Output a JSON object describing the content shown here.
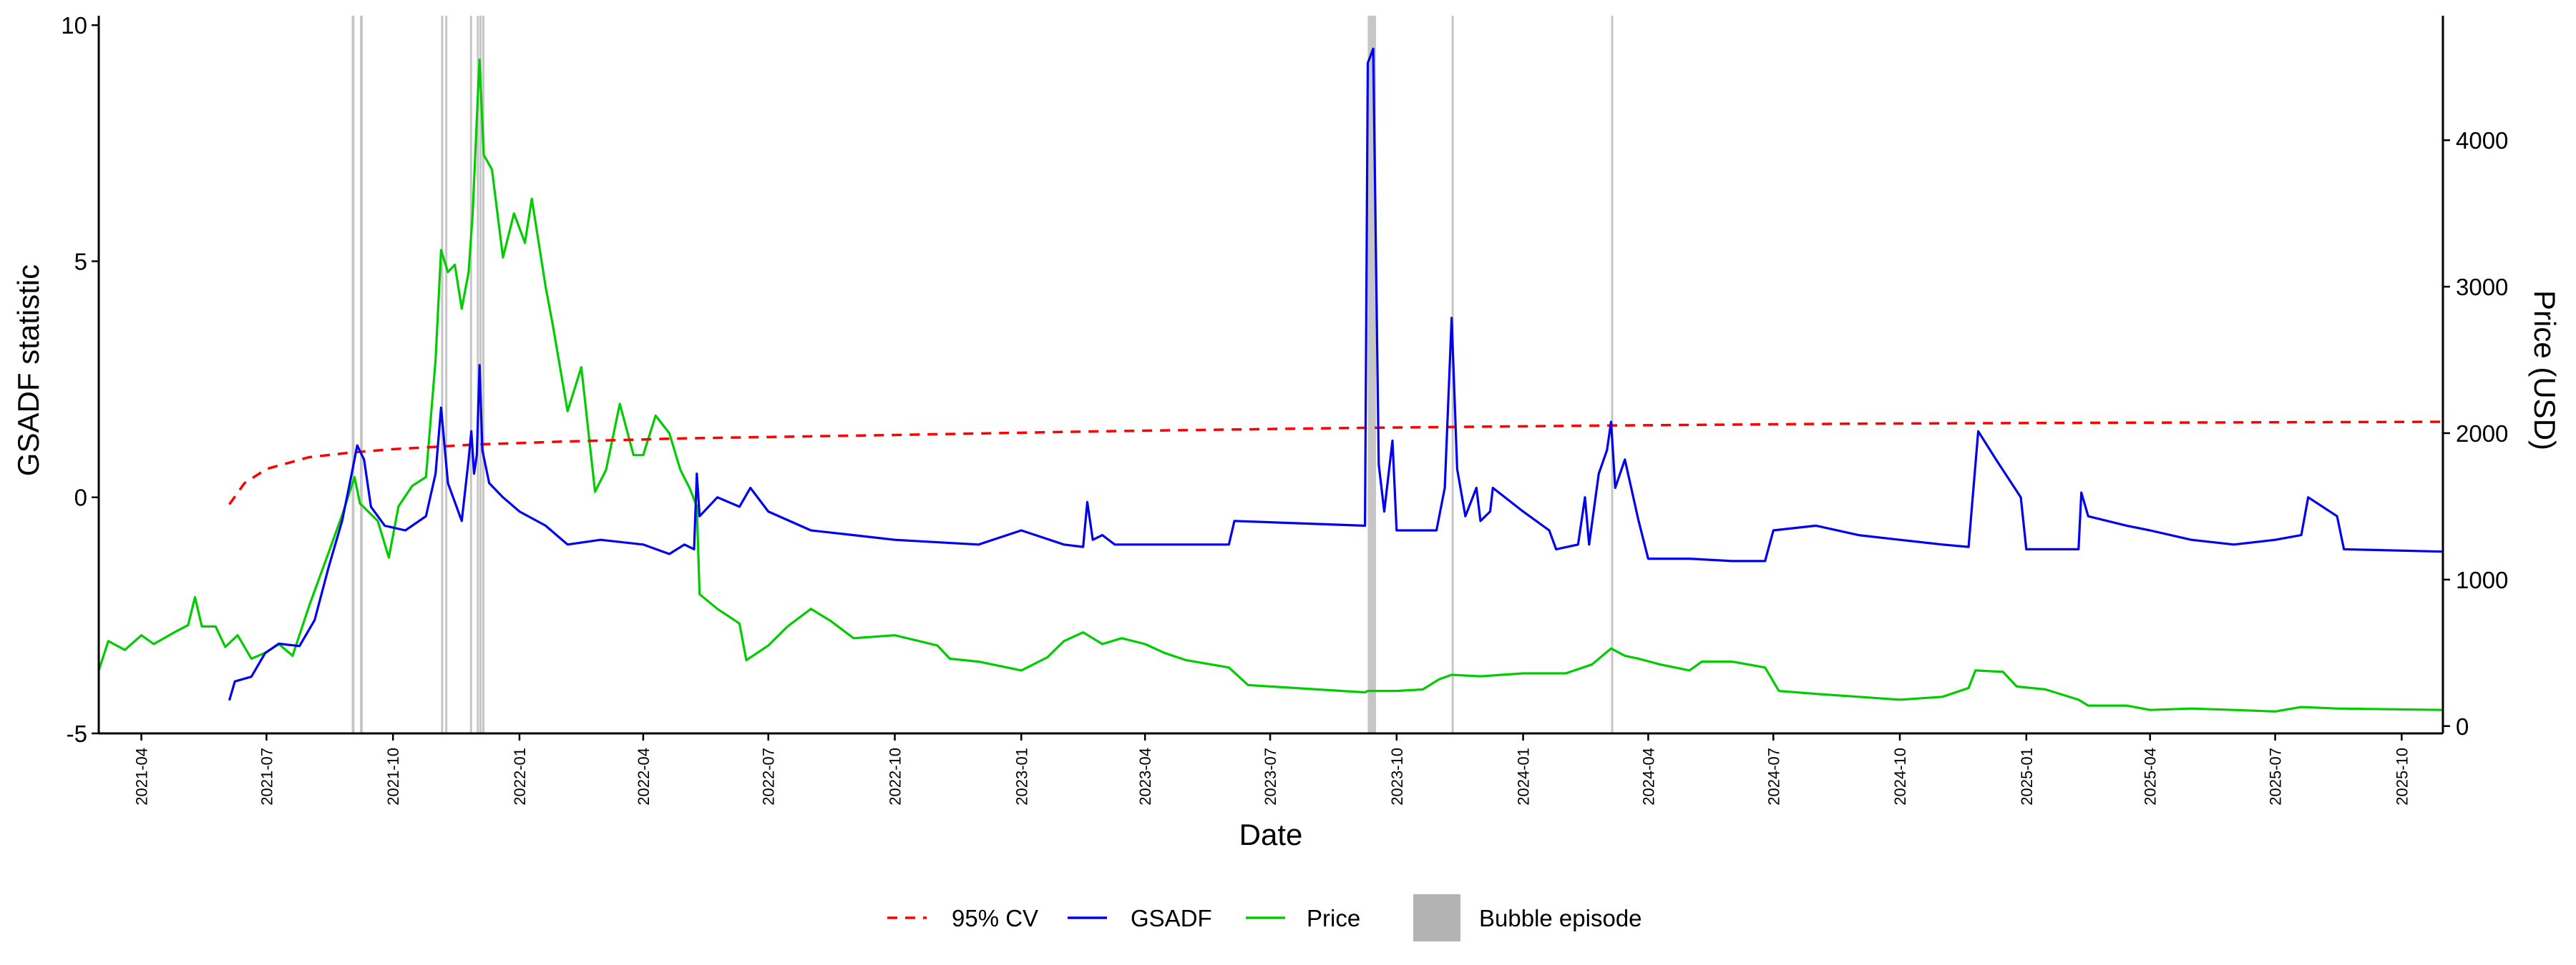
{
  "chart_data": {
    "type": "line",
    "xlabel": "Date",
    "ylabel_left": "GSADF statistic",
    "ylabel_right": "Price (USD)",
    "xlim": [
      "2021-03-01",
      "2025-10-31"
    ],
    "ylim_left": [
      -5,
      10.2
    ],
    "ylim_right": [
      -50,
      4850
    ],
    "left_ticks": [
      -5,
      0,
      5,
      10
    ],
    "left_tick_labels": [
      "-5",
      "0",
      "5",
      "10"
    ],
    "right_ticks": [
      0,
      1000,
      2000,
      3000,
      4000
    ],
    "right_tick_labels": [
      "0",
      "1000",
      "2000",
      "3000",
      "4000"
    ],
    "x_ticks": [
      "2021-04-01",
      "2021-07-01",
      "2021-10-01",
      "2022-01-01",
      "2022-04-01",
      "2022-07-01",
      "2022-10-01",
      "2023-01-01",
      "2023-04-01",
      "2023-07-01",
      "2023-10-01",
      "2024-01-01",
      "2024-04-01",
      "2024-07-01",
      "2024-10-01",
      "2025-01-01",
      "2025-04-01",
      "2025-07-01",
      "2025-10-01"
    ],
    "x_tick_labels": [
      "2021-04",
      "2021-07",
      "2021-10",
      "2022-01",
      "2022-04",
      "2022-07",
      "2022-10",
      "2023-01",
      "2023-04",
      "2023-07",
      "2023-10",
      "2024-01",
      "2024-04",
      "2024-07",
      "2024-10",
      "2025-01",
      "2025-04",
      "2025-07",
      "2025-10"
    ],
    "grid": false,
    "legend_position": "bottom",
    "series": [
      {
        "name": "95% CV",
        "axis": "left",
        "color": "#ff0000",
        "style": "dashed",
        "points": [
          [
            "2021-06-04",
            -0.15
          ],
          [
            "2021-06-15",
            0.3
          ],
          [
            "2021-07-01",
            0.6
          ],
          [
            "2021-08-01",
            0.85
          ],
          [
            "2021-09-01",
            0.95
          ],
          [
            "2021-10-01",
            1.02
          ],
          [
            "2021-12-01",
            1.12
          ],
          [
            "2022-02-01",
            1.18
          ],
          [
            "2022-05-01",
            1.25
          ],
          [
            "2022-10-01",
            1.32
          ],
          [
            "2023-03-01",
            1.4
          ],
          [
            "2023-09-01",
            1.47
          ],
          [
            "2024-03-01",
            1.52
          ],
          [
            "2024-09-01",
            1.56
          ],
          [
            "2025-03-01",
            1.58
          ],
          [
            "2025-10-31",
            1.6
          ]
        ]
      },
      {
        "name": "GSADF",
        "axis": "left",
        "color": "#0000ee",
        "style": "solid",
        "points": [
          [
            "2021-06-04",
            -4.3
          ],
          [
            "2021-06-08",
            -3.9
          ],
          [
            "2021-06-20",
            -3.8
          ],
          [
            "2021-06-30",
            -3.3
          ],
          [
            "2021-07-10",
            -3.1
          ],
          [
            "2021-07-25",
            -3.15
          ],
          [
            "2021-08-05",
            -2.6
          ],
          [
            "2021-08-15",
            -1.5
          ],
          [
            "2021-08-25",
            -0.5
          ],
          [
            "2021-09-01",
            0.5
          ],
          [
            "2021-09-05",
            1.1
          ],
          [
            "2021-09-10",
            0.8
          ],
          [
            "2021-09-15",
            -0.2
          ],
          [
            "2021-09-25",
            -0.6
          ],
          [
            "2021-10-10",
            -0.7
          ],
          [
            "2021-10-25",
            -0.4
          ],
          [
            "2021-11-01",
            0.5
          ],
          [
            "2021-11-05",
            1.9
          ],
          [
            "2021-11-10",
            0.3
          ],
          [
            "2021-11-20",
            -0.5
          ],
          [
            "2021-11-25",
            0.8
          ],
          [
            "2021-11-27",
            1.4
          ],
          [
            "2021-11-29",
            0.5
          ],
          [
            "2021-12-01",
            0.9
          ],
          [
            "2021-12-03",
            2.8
          ],
          [
            "2021-12-05",
            1.0
          ],
          [
            "2021-12-10",
            0.3
          ],
          [
            "2021-12-20",
            0.0
          ],
          [
            "2022-01-01",
            -0.3
          ],
          [
            "2022-01-20",
            -0.6
          ],
          [
            "2022-02-05",
            -1.0
          ],
          [
            "2022-03-01",
            -0.9
          ],
          [
            "2022-04-01",
            -1.0
          ],
          [
            "2022-04-20",
            -1.2
          ],
          [
            "2022-05-01",
            -1.0
          ],
          [
            "2022-05-08",
            -1.1
          ],
          [
            "2022-05-10",
            0.5
          ],
          [
            "2022-05-12",
            -0.4
          ],
          [
            "2022-05-25",
            0.0
          ],
          [
            "2022-06-10",
            -0.2
          ],
          [
            "2022-06-18",
            0.2
          ],
          [
            "2022-07-01",
            -0.3
          ],
          [
            "2022-08-01",
            -0.7
          ],
          [
            "2022-09-01",
            -0.8
          ],
          [
            "2022-10-01",
            -0.9
          ],
          [
            "2022-12-01",
            -1.0
          ],
          [
            "2023-01-01",
            -0.7
          ],
          [
            "2023-02-01",
            -1.0
          ],
          [
            "2023-02-15",
            -1.05
          ],
          [
            "2023-02-18",
            -0.1
          ],
          [
            "2023-02-22",
            -0.9
          ],
          [
            "2023-03-01",
            -0.8
          ],
          [
            "2023-03-10",
            -1.0
          ],
          [
            "2023-06-01",
            -1.0
          ],
          [
            "2023-06-05",
            -0.5
          ],
          [
            "2023-09-08",
            -0.6
          ],
          [
            "2023-09-10",
            9.2
          ],
          [
            "2023-09-14",
            9.5
          ],
          [
            "2023-09-18",
            0.7
          ],
          [
            "2023-09-22",
            -0.3
          ],
          [
            "2023-09-28",
            1.2
          ],
          [
            "2023-10-01",
            -0.7
          ],
          [
            "2023-10-30",
            -0.7
          ],
          [
            "2023-11-05",
            0.2
          ],
          [
            "2023-11-10",
            3.8
          ],
          [
            "2023-11-14",
            0.6
          ],
          [
            "2023-11-20",
            -0.4
          ],
          [
            "2023-11-28",
            0.2
          ],
          [
            "2023-12-01",
            -0.5
          ],
          [
            "2023-12-08",
            -0.3
          ],
          [
            "2023-12-10",
            0.2
          ],
          [
            "2024-01-01",
            -0.3
          ],
          [
            "2024-01-20",
            -0.7
          ],
          [
            "2024-01-25",
            -1.1
          ],
          [
            "2024-02-10",
            -1.0
          ],
          [
            "2024-02-15",
            0.0
          ],
          [
            "2024-02-18",
            -1.0
          ],
          [
            "2024-02-25",
            0.5
          ],
          [
            "2024-03-02",
            1.0
          ],
          [
            "2024-03-05",
            1.6
          ],
          [
            "2024-03-08",
            0.2
          ],
          [
            "2024-03-15",
            0.8
          ],
          [
            "2024-03-25",
            -0.5
          ],
          [
            "2024-04-01",
            -1.3
          ],
          [
            "2024-05-01",
            -1.3
          ],
          [
            "2024-06-01",
            -1.35
          ],
          [
            "2024-06-25",
            -1.35
          ],
          [
            "2024-07-01",
            -0.7
          ],
          [
            "2024-08-01",
            -0.6
          ],
          [
            "2024-09-01",
            -0.8
          ],
          [
            "2024-10-01",
            -0.9
          ],
          [
            "2024-11-01",
            -1.0
          ],
          [
            "2024-11-20",
            -1.05
          ],
          [
            "2024-11-27",
            1.4
          ],
          [
            "2024-12-10",
            0.8
          ],
          [
            "2024-12-28",
            0.0
          ],
          [
            "2025-01-01",
            -1.1
          ],
          [
            "2025-02-08",
            -1.1
          ],
          [
            "2025-02-10",
            0.1
          ],
          [
            "2025-02-15",
            -0.4
          ],
          [
            "2025-03-15",
            -0.6
          ],
          [
            "2025-04-01",
            -0.7
          ],
          [
            "2025-05-01",
            -0.9
          ],
          [
            "2025-06-01",
            -1.0
          ],
          [
            "2025-07-01",
            -0.9
          ],
          [
            "2025-07-20",
            -0.8
          ],
          [
            "2025-07-25",
            0.0
          ],
          [
            "2025-08-15",
            -0.4
          ],
          [
            "2025-08-20",
            -1.1
          ],
          [
            "2025-10-31",
            -1.15
          ]
        ]
      },
      {
        "name": "Price",
        "axis": "right",
        "color": "#00cc00",
        "style": "solid",
        "points": [
          [
            "2021-03-01",
            380
          ],
          [
            "2021-03-08",
            580
          ],
          [
            "2021-03-20",
            520
          ],
          [
            "2021-04-01",
            620
          ],
          [
            "2021-04-10",
            560
          ],
          [
            "2021-04-25",
            640
          ],
          [
            "2021-05-05",
            690
          ],
          [
            "2021-05-10",
            880
          ],
          [
            "2021-05-15",
            680
          ],
          [
            "2021-05-25",
            680
          ],
          [
            "2021-06-01",
            540
          ],
          [
            "2021-06-10",
            620
          ],
          [
            "2021-06-20",
            460
          ],
          [
            "2021-06-30",
            500
          ],
          [
            "2021-07-10",
            560
          ],
          [
            "2021-07-20",
            480
          ],
          [
            "2021-08-01",
            820
          ],
          [
            "2021-08-15",
            1180
          ],
          [
            "2021-08-25",
            1440
          ],
          [
            "2021-09-03",
            1700
          ],
          [
            "2021-09-07",
            1520
          ],
          [
            "2021-09-20",
            1400
          ],
          [
            "2021-09-28",
            1150
          ],
          [
            "2021-10-05",
            1500
          ],
          [
            "2021-10-15",
            1640
          ],
          [
            "2021-10-25",
            1700
          ],
          [
            "2021-11-01",
            2500
          ],
          [
            "2021-11-05",
            3250
          ],
          [
            "2021-11-10",
            3100
          ],
          [
            "2021-11-15",
            3150
          ],
          [
            "2021-11-20",
            2850
          ],
          [
            "2021-11-25",
            3100
          ],
          [
            "2021-11-28",
            3500
          ],
          [
            "2021-12-01",
            4150
          ],
          [
            "2021-12-03",
            4550
          ],
          [
            "2021-12-06",
            3900
          ],
          [
            "2021-12-12",
            3800
          ],
          [
            "2021-12-20",
            3200
          ],
          [
            "2021-12-28",
            3500
          ],
          [
            "2022-01-05",
            3300
          ],
          [
            "2022-01-10",
            3600
          ],
          [
            "2022-01-20",
            3000
          ],
          [
            "2022-01-25",
            2750
          ],
          [
            "2022-02-05",
            2150
          ],
          [
            "2022-02-15",
            2450
          ],
          [
            "2022-02-25",
            1600
          ],
          [
            "2022-03-05",
            1750
          ],
          [
            "2022-03-15",
            2200
          ],
          [
            "2022-03-25",
            1850
          ],
          [
            "2022-04-01",
            1850
          ],
          [
            "2022-04-10",
            2120
          ],
          [
            "2022-04-20",
            2000
          ],
          [
            "2022-04-28",
            1750
          ],
          [
            "2022-05-05",
            1620
          ],
          [
            "2022-05-10",
            1500
          ],
          [
            "2022-05-12",
            900
          ],
          [
            "2022-05-25",
            800
          ],
          [
            "2022-06-10",
            700
          ],
          [
            "2022-06-15",
            450
          ],
          [
            "2022-07-01",
            550
          ],
          [
            "2022-07-15",
            680
          ],
          [
            "2022-08-01",
            800
          ],
          [
            "2022-08-15",
            720
          ],
          [
            "2022-09-01",
            600
          ],
          [
            "2022-10-01",
            620
          ],
          [
            "2022-11-01",
            550
          ],
          [
            "2022-11-10",
            460
          ],
          [
            "2022-12-01",
            440
          ],
          [
            "2023-01-01",
            380
          ],
          [
            "2023-01-20",
            470
          ],
          [
            "2023-02-01",
            580
          ],
          [
            "2023-02-15",
            640
          ],
          [
            "2023-03-01",
            560
          ],
          [
            "2023-03-15",
            600
          ],
          [
            "2023-04-01",
            560
          ],
          [
            "2023-04-15",
            500
          ],
          [
            "2023-05-01",
            450
          ],
          [
            "2023-06-01",
            400
          ],
          [
            "2023-06-15",
            280
          ],
          [
            "2023-09-08",
            230
          ],
          [
            "2023-09-10",
            240
          ],
          [
            "2023-10-01",
            240
          ],
          [
            "2023-10-20",
            250
          ],
          [
            "2023-11-01",
            320
          ],
          [
            "2023-11-10",
            350
          ],
          [
            "2023-12-01",
            340
          ],
          [
            "2024-01-01",
            360
          ],
          [
            "2024-02-01",
            360
          ],
          [
            "2024-02-20",
            420
          ],
          [
            "2024-03-05",
            530
          ],
          [
            "2024-03-15",
            480
          ],
          [
            "2024-03-25",
            460
          ],
          [
            "2024-04-10",
            420
          ],
          [
            "2024-05-01",
            380
          ],
          [
            "2024-05-10",
            440
          ],
          [
            "2024-06-01",
            440
          ],
          [
            "2024-06-25",
            400
          ],
          [
            "2024-07-05",
            240
          ],
          [
            "2024-08-01",
            220
          ],
          [
            "2024-09-01",
            200
          ],
          [
            "2024-10-01",
            180
          ],
          [
            "2024-11-01",
            200
          ],
          [
            "2024-11-20",
            260
          ],
          [
            "2024-11-25",
            380
          ],
          [
            "2024-12-15",
            370
          ],
          [
            "2024-12-25",
            270
          ],
          [
            "2025-01-15",
            250
          ],
          [
            "2025-02-08",
            180
          ],
          [
            "2025-02-15",
            140
          ],
          [
            "2025-03-15",
            140
          ],
          [
            "2025-04-01",
            110
          ],
          [
            "2025-05-01",
            120
          ],
          [
            "2025-06-01",
            110
          ],
          [
            "2025-07-01",
            100
          ],
          [
            "2025-07-20",
            130
          ],
          [
            "2025-08-15",
            120
          ],
          [
            "2025-10-31",
            110
          ]
        ]
      }
    ],
    "bubble_episodes": {
      "name": "Bubble episode",
      "color": "#b3b3b3",
      "ranges": [
        [
          "2021-09-01",
          "2021-09-03"
        ],
        [
          "2021-09-07",
          "2021-09-09"
        ],
        [
          "2021-11-05",
          "2021-11-06"
        ],
        [
          "2021-11-08",
          "2021-11-09"
        ],
        [
          "2021-11-26",
          "2021-11-27"
        ],
        [
          "2021-12-01",
          "2021-12-02"
        ],
        [
          "2021-12-03",
          "2021-12-04"
        ],
        [
          "2021-12-05",
          "2021-12-06"
        ],
        [
          "2023-09-10",
          "2023-09-16"
        ],
        [
          "2023-11-10",
          "2023-11-11"
        ],
        [
          "2024-03-05",
          "2024-03-06"
        ]
      ]
    }
  }
}
